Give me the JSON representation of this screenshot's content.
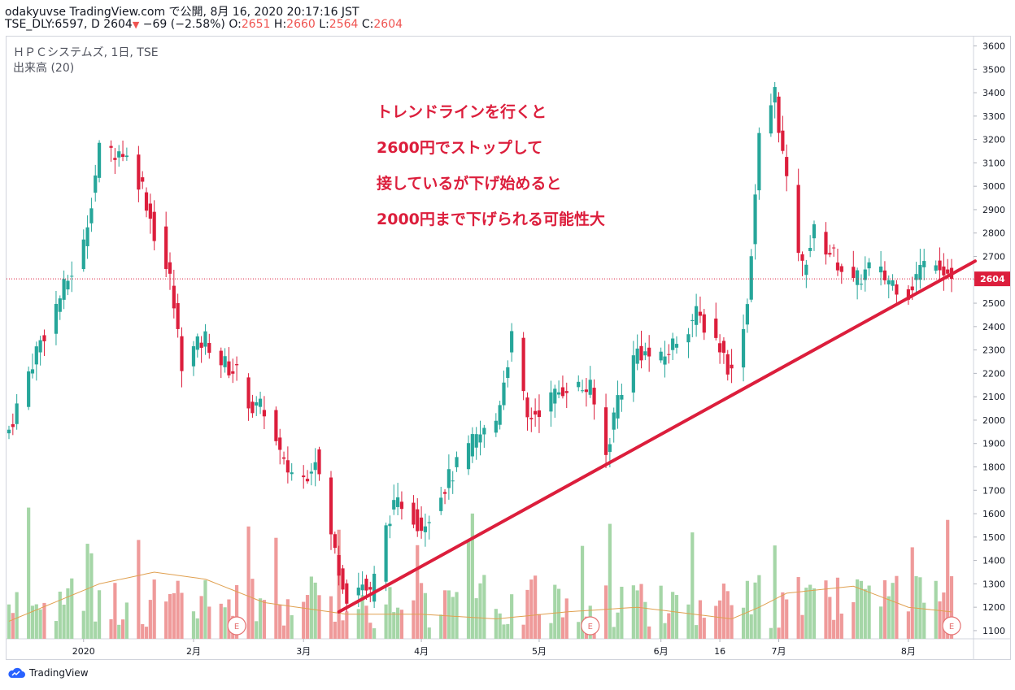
{
  "header": {
    "line1": "odakyuvse TradingView.com で公開, 8月 16, 2020 20:17:16 JST",
    "symbol": "TSE_DLY:6597, D",
    "price": "2604",
    "arrow": "▼",
    "change": "−69 (−2.58%)",
    "o_label": "O:",
    "o_value": "2651",
    "h_label": "H:",
    "h_value": "2660",
    "l_label": "L:",
    "l_value": "2564",
    "c_label": "C:",
    "c_value": "2604"
  },
  "legend": {
    "line1": "ＨＰＣシステムズ, 1日, TSE",
    "line2": "出来高 (20)"
  },
  "annotation": [
    "トレンドラインを行くと",
    "2600円でストップして",
    "接しているが下げ始めると",
    "2000円まで下げられる可能性大"
  ],
  "price_label": "2604",
  "earnings_marker": "E",
  "footer": {
    "brand": "TradingView",
    "icon": "tradingview-cloud-icon"
  },
  "colors": {
    "up": "#26a69a",
    "down": "#dc1e3c",
    "up_volume": "#a5d6a7",
    "down_volume": "#ef9a9a",
    "trendline": "#dc1e3c"
  },
  "chart_data": {
    "type": "candlestick",
    "y_ticks": [
      1100,
      1200,
      1300,
      1400,
      1500,
      1600,
      1700,
      1800,
      1900,
      2000,
      2100,
      2200,
      2300,
      2400,
      2500,
      2600,
      2700,
      2800,
      2900,
      3000,
      3100,
      3200,
      3300,
      3400,
      3500,
      3600
    ],
    "ylim": [
      1065,
      3640
    ],
    "x_ticks": [
      "2020",
      "2月",
      "3月",
      "4月",
      "5月",
      "6月",
      "16",
      "7月",
      "8月"
    ],
    "last_price": 2604,
    "earnings_dates": [
      "2020-02-14",
      "2020-05-14",
      "2020-08-14"
    ],
    "trendline": {
      "from": {
        "date": "2020-03-11",
        "price": 1180
      },
      "to": {
        "date": "2020-08-20",
        "price": 2680
      }
    },
    "ohlc_anchors": [
      [
        "2019-12-18",
        1960
      ],
      [
        "2019-12-25",
        2300
      ],
      [
        "2020-01-06",
        2750
      ],
      [
        "2020-01-10",
        3150
      ],
      [
        "2020-01-16",
        3150
      ],
      [
        "2020-01-21",
        3000
      ],
      [
        "2020-01-24",
        2800
      ],
      [
        "2020-01-28",
        2600
      ],
      [
        "2020-01-31",
        2250
      ],
      [
        "2020-02-06",
        2350
      ],
      [
        "2020-02-10",
        2250
      ],
      [
        "2020-02-14",
        2200
      ],
      [
        "2020-02-18",
        2050
      ],
      [
        "2020-02-21",
        2050
      ],
      [
        "2020-02-26",
        1800
      ],
      [
        "2020-03-02",
        1750
      ],
      [
        "2020-03-05",
        1850
      ],
      [
        "2020-03-09",
        1500
      ],
      [
        "2020-03-13",
        1250
      ],
      [
        "2020-03-17",
        1300
      ],
      [
        "2020-03-19",
        1250
      ],
      [
        "2020-03-24",
        1600
      ],
      [
        "2020-03-27",
        1650
      ],
      [
        "2020-04-01",
        1550
      ],
      [
        "2020-04-08",
        1750
      ],
      [
        "2020-04-14",
        1900
      ],
      [
        "2020-04-20",
        2000
      ],
      [
        "2020-04-24",
        2350
      ],
      [
        "2020-04-28",
        2000
      ],
      [
        "2020-05-01",
        2050
      ],
      [
        "2020-05-08",
        2150
      ],
      [
        "2020-05-14",
        2130
      ],
      [
        "2020-05-18",
        1850
      ],
      [
        "2020-05-21",
        2100
      ],
      [
        "2020-05-26",
        2300
      ],
      [
        "2020-06-01",
        2250
      ],
      [
        "2020-06-05",
        2350
      ],
      [
        "2020-06-10",
        2450
      ],
      [
        "2020-06-15",
        2350
      ],
      [
        "2020-06-19",
        2200
      ],
      [
        "2020-06-23",
        2500
      ],
      [
        "2020-06-26",
        3200
      ],
      [
        "2020-06-30",
        3400
      ],
      [
        "2020-07-03",
        3000
      ],
      [
        "2020-07-07",
        2650
      ],
      [
        "2020-07-10",
        2800
      ],
      [
        "2020-07-15",
        2700
      ],
      [
        "2020-07-20",
        2580
      ],
      [
        "2020-07-24",
        2650
      ],
      [
        "2020-07-29",
        2600
      ],
      [
        "2020-08-03",
        2550
      ],
      [
        "2020-08-06",
        2650
      ],
      [
        "2020-08-10",
        2700
      ],
      [
        "2020-08-14",
        2604
      ]
    ],
    "volume_ma_anchors": [
      [
        "2019-12-18",
        1140
      ],
      [
        "2020-01-10",
        1300
      ],
      [
        "2020-01-24",
        1350
      ],
      [
        "2020-02-06",
        1320
      ],
      [
        "2020-02-21",
        1220
      ],
      [
        "2020-03-13",
        1170
      ],
      [
        "2020-04-01",
        1170
      ],
      [
        "2020-04-20",
        1150
      ],
      [
        "2020-05-08",
        1180
      ],
      [
        "2020-05-26",
        1200
      ],
      [
        "2020-06-19",
        1150
      ],
      [
        "2020-06-26",
        1200
      ],
      [
        "2020-07-03",
        1260
      ],
      [
        "2020-07-20",
        1290
      ],
      [
        "2020-08-03",
        1200
      ],
      [
        "2020-08-14",
        1180
      ]
    ]
  }
}
